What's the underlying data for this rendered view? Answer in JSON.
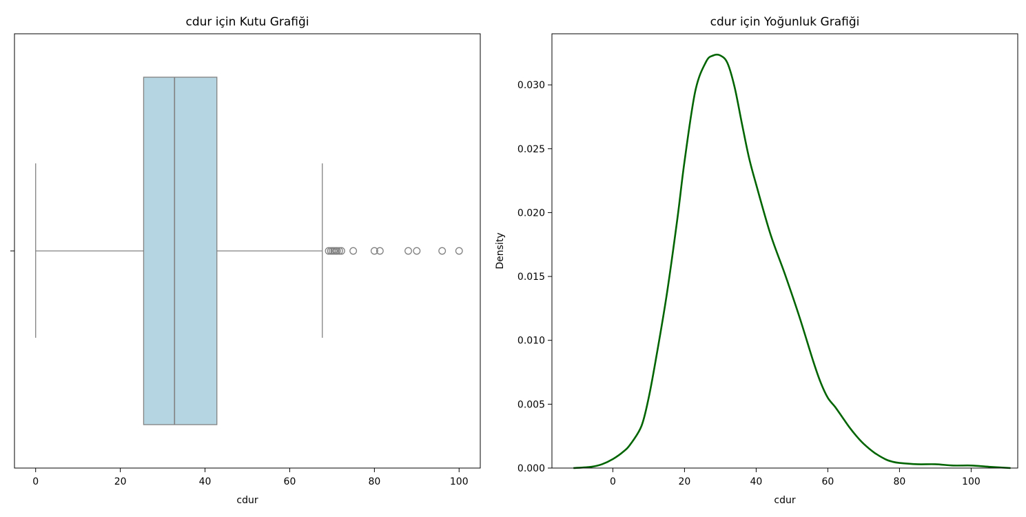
{
  "chart_data": [
    {
      "type": "box",
      "title": "cdur için Kutu Grafiği",
      "xlabel": "cdur",
      "ylabel": "",
      "xlim": [
        -5,
        105
      ],
      "xticks": [
        0,
        20,
        40,
        60,
        80,
        100
      ],
      "orientation": "horizontal",
      "grid": false,
      "box": {
        "whisker_low": 0,
        "q1": 25.5,
        "median": 32.8,
        "q3": 42.8,
        "whisker_high": 67.7
      },
      "outliers": [
        69.2,
        69.7,
        70.1,
        70.5,
        70.9,
        71.2,
        71.7,
        72.2,
        75,
        80,
        81.3,
        88,
        90,
        96,
        100
      ],
      "colors": {
        "box_fill": "#b4d5e1",
        "line": "#808080"
      }
    },
    {
      "type": "line",
      "title": "cdur için Yoğunluk Grafiği",
      "xlabel": "cdur",
      "ylabel": "Density",
      "xlim": [
        -17,
        113
      ],
      "ylim": [
        0,
        0.034
      ],
      "xticks": [
        0,
        20,
        40,
        60,
        80,
        100
      ],
      "yticks": [
        "0.000",
        "0.005",
        "0.010",
        "0.015",
        "0.020",
        "0.025",
        "0.030"
      ],
      "grid": false,
      "colors": {
        "line": "#006400"
      },
      "series": [
        {
          "x": [
            -11,
            -6,
            -3,
            0,
            3,
            5,
            8,
            10,
            12,
            15,
            18,
            20,
            23,
            26,
            28,
            30,
            32,
            34,
            36,
            38,
            40,
            44,
            48,
            52,
            56,
            58,
            60,
            62,
            64,
            66,
            68,
            70,
            73,
            76,
            78,
            80,
            85,
            90,
            95,
            100,
            105,
            111
          ],
          "y": [
            0.0,
            0.0001,
            0.0003,
            0.0007,
            0.0013,
            0.0019,
            0.0033,
            0.0055,
            0.0085,
            0.0135,
            0.0195,
            0.024,
            0.0295,
            0.0318,
            0.0323,
            0.0323,
            0.0317,
            0.0298,
            0.027,
            0.0243,
            0.0222,
            0.0183,
            0.0152,
            0.0119,
            0.0083,
            0.0067,
            0.0055,
            0.0048,
            0.004,
            0.0032,
            0.0025,
            0.0019,
            0.0012,
            0.0007,
            0.0005,
            0.0004,
            0.0003,
            0.0003,
            0.0002,
            0.0002,
            0.0001,
            0.0
          ]
        }
      ]
    }
  ]
}
